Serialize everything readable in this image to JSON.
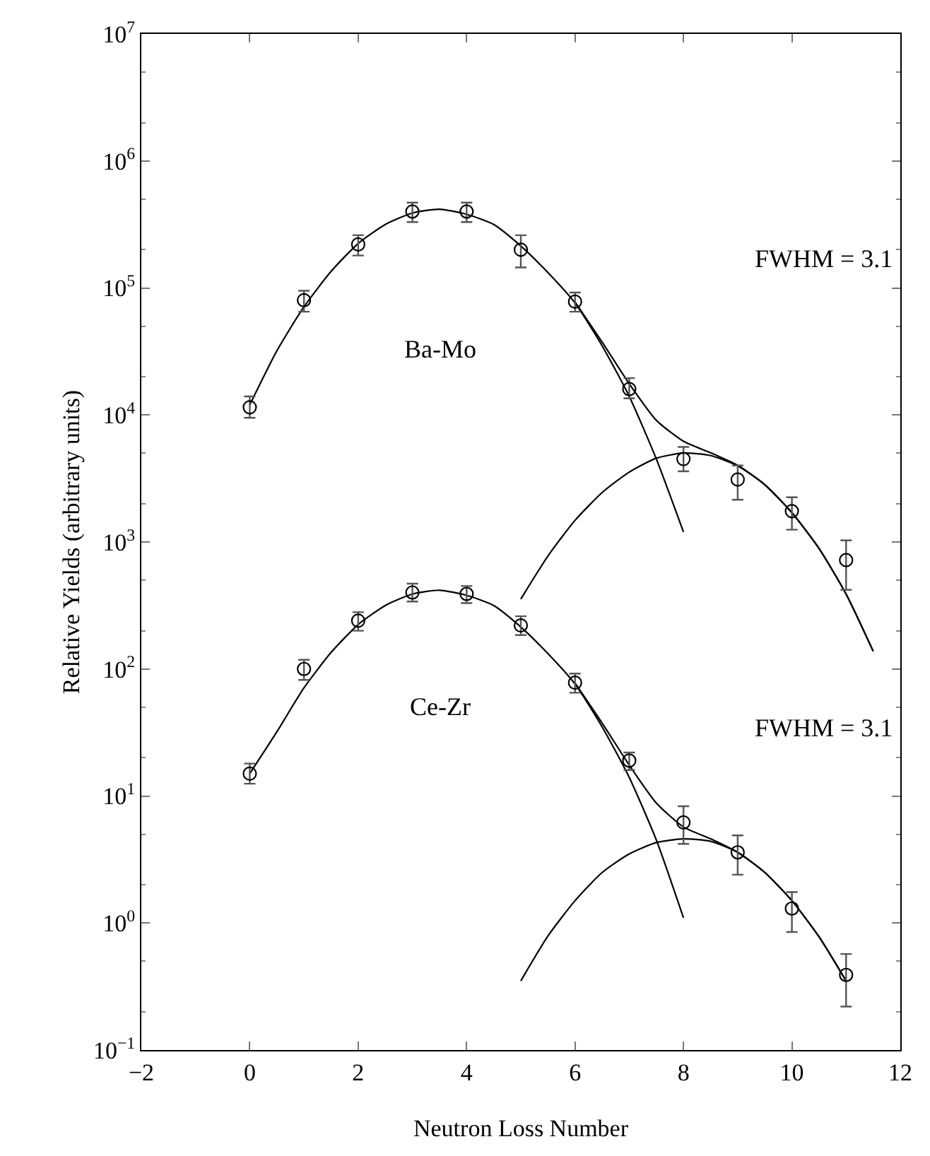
{
  "chart_data": {
    "type": "scatter",
    "xlabel": "Neutron Loss Number",
    "ylabel": "Relative Yields (arbitrary units)",
    "xlim": [
      -2,
      12
    ],
    "xticks": [
      {
        "value": -2,
        "label": "−2"
      },
      0,
      2,
      4,
      6,
      8,
      10,
      12
    ],
    "ylim": [
      0.1,
      10000000
    ],
    "log": true,
    "yticks": [
      {
        "value": 0.1,
        "label": "10$^{−1}$"
      },
      {
        "value": 1,
        "label": "10$^{0}$"
      },
      {
        "value": 10,
        "label": "10$^{1}$"
      },
      {
        "value": 100,
        "label": "10$^{2}$"
      },
      {
        "value": 1000,
        "label": "10$^{3}$"
      },
      {
        "value": 10000,
        "label": "10$^{4}$"
      },
      {
        "value": 100000,
        "label": "10$^{5}$"
      },
      {
        "value": 1000000,
        "label": "10$^{6}$"
      },
      {
        "value": 10000000,
        "label": "10$^{7}$"
      }
    ],
    "grid": false,
    "marker": "circle",
    "series": [
      {
        "color": "#000000",
        "x": [
          0,
          1,
          2,
          3,
          4,
          5,
          6,
          7,
          8,
          9,
          10,
          11
        ],
        "values": [
          11500,
          80000,
          220000,
          400000,
          400000,
          200000,
          78000,
          16000,
          4500,
          3100,
          1750,
          720
        ],
        "errors": [
          [
            9500,
            14000
          ],
          [
            65000,
            95000
          ],
          [
            180000,
            260000
          ],
          [
            330000,
            470000
          ],
          [
            330000,
            470000
          ],
          [
            145000,
            260000
          ],
          [
            65000,
            92000
          ],
          [
            13500,
            19500
          ],
          [
            3600,
            5600
          ],
          [
            2150,
            4000
          ],
          [
            1250,
            2250
          ],
          [
            420,
            1030
          ]
        ]
      },
      {
        "color": "#000000",
        "x": [
          0,
          1,
          2,
          3,
          4,
          5,
          6,
          7,
          8,
          9,
          10,
          11
        ],
        "values": [
          15,
          100,
          240,
          400,
          390,
          220,
          78,
          19,
          6.2,
          3.6,
          1.3,
          0.39
        ],
        "errors": [
          [
            12.5,
            18
          ],
          [
            82,
            118
          ],
          [
            200,
            280
          ],
          [
            340,
            470
          ],
          [
            330,
            450
          ],
          [
            185,
            260
          ],
          [
            65,
            92
          ],
          [
            16,
            22
          ],
          [
            4.2,
            8.3
          ],
          [
            2.4,
            4.9
          ],
          [
            0.85,
            1.75
          ],
          [
            0.22,
            0.57
          ]
        ]
      },
      {
        "type": "line",
        "color": "#000000",
        "marker": "none",
        "x": [
          0,
          0.5,
          1,
          1.5,
          2,
          2.5,
          3,
          3.5,
          4,
          4.5,
          5,
          5.5,
          6,
          6.5,
          7,
          7.5,
          8
        ],
        "values": [
          12000,
          32000,
          71000,
          135000,
          224000,
          316000,
          389000,
          417000,
          380000,
          316000,
          214000,
          132000,
          76000,
          35000,
          14000,
          4500,
          1200
        ]
      },
      {
        "type": "line",
        "color": "#000000",
        "marker": "none",
        "x": [
          5,
          5.5,
          6,
          6.5,
          7,
          7.5,
          8,
          8.5,
          9,
          9.5,
          10,
          10.5,
          11,
          11.5
        ],
        "values": [
          355,
          776,
          1480,
          2450,
          3550,
          4570,
          5010,
          4790,
          3980,
          2820,
          1700,
          890,
          389,
          138
        ]
      },
      {
        "type": "line",
        "color": "#000000",
        "marker": "none",
        "x": [
          6,
          6.5,
          7,
          7.5,
          8,
          8.5,
          9,
          9.5,
          10,
          10.5,
          11,
          11.5
        ],
        "values": [
          77500,
          37500,
          17600,
          9070,
          6200,
          5040,
          4020,
          2830,
          1700,
          890,
          389,
          138
        ]
      },
      {
        "type": "line",
        "color": "#000000",
        "marker": "none",
        "x": [
          0,
          0.5,
          1,
          1.5,
          2,
          2.5,
          3,
          3.5,
          4,
          4.5,
          5,
          5.5,
          6,
          6.5,
          7,
          7.5,
          8
        ],
        "values": [
          15,
          32,
          71,
          135,
          224,
          316,
          389,
          417,
          380,
          316,
          214,
          132,
          76,
          35,
          14,
          4.5,
          1.1
        ]
      },
      {
        "type": "line",
        "color": "#000000",
        "marker": "none",
        "x": [
          5,
          5.5,
          6,
          6.5,
          7,
          7.5,
          8,
          8.5,
          9,
          9.5,
          10,
          10.5,
          11
        ],
        "values": [
          0.35,
          0.79,
          1.5,
          2.5,
          3.5,
          4.3,
          4.6,
          4.4,
          3.6,
          2.5,
          1.5,
          0.78,
          0.35
        ]
      },
      {
        "type": "line",
        "color": "#000000",
        "marker": "none",
        "x": [
          6,
          6.5,
          7,
          7.5,
          8,
          8.5,
          9,
          9.5,
          10,
          10.5,
          11
        ],
        "values": [
          77.5,
          37.5,
          17.5,
          8.8,
          5.7,
          4.6,
          3.6,
          2.5,
          1.5,
          0.78,
          0.35
        ]
      }
    ],
    "annotations": [
      "Ba-Mo",
      "FWHM = 3.1",
      "Ce-Zr",
      "FWHM = 3.1"
    ]
  }
}
